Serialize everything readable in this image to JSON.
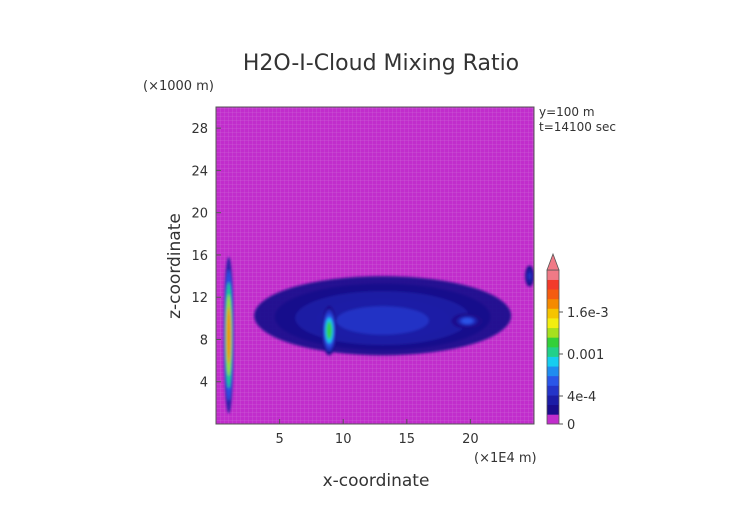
{
  "chart_data": {
    "type": "heatmap",
    "title": "H2O-I-Cloud Mixing Ratio",
    "xlabel": "x-coordinate",
    "ylabel": "z-coordinate",
    "x_unit": "(×1E4 m)",
    "y_unit": "(×1000 m)",
    "annotations": [
      "y=100 m",
      "t=14100 sec"
    ],
    "xlim": [
      0,
      25
    ],
    "ylim": [
      0,
      30
    ],
    "x_ticks": [
      5,
      10,
      15,
      20
    ],
    "y_ticks": [
      4,
      8,
      12,
      16,
      20,
      24,
      28
    ],
    "colorbar": {
      "ticks": [
        {
          "label": "0",
          "value": 0
        },
        {
          "label": "4e-4",
          "value": 0.0004
        },
        {
          "label": "0.001",
          "value": 0.001
        },
        {
          "label": "1.6e-3",
          "value": 0.0016
        }
      ],
      "range": [
        0,
        0.0022
      ],
      "extend": "max",
      "colors": [
        "#c12dcc",
        "#1a0c8c",
        "#1c1ca6",
        "#2434c8",
        "#2a56e8",
        "#1f8cf0",
        "#16cdf0",
        "#22d08a",
        "#33d039",
        "#a6e01e",
        "#f2ee10",
        "#f5c400",
        "#f58a00",
        "#f55c10",
        "#f23a2a",
        "#f07a86"
      ]
    },
    "regions": [
      {
        "label": "ice cloud column near left edge",
        "x_range": [
          0.6,
          1.4
        ],
        "z_range": [
          1.0,
          15.8
        ],
        "max_value": 0.0017
      },
      {
        "label": "main anvil layer",
        "x_range": [
          3.0,
          23.2
        ],
        "z_range": [
          6.5,
          14.0
        ],
        "max_value": 0.0004
      },
      {
        "label": "core near x=9",
        "x_range": [
          8.3,
          9.5
        ],
        "z_range": [
          6.5,
          11.2
        ],
        "max_value": 0.0011
      },
      {
        "label": "core near x=19.5",
        "x_range": [
          18.5,
          21.0
        ],
        "z_range": [
          9.0,
          10.5
        ],
        "max_value": 0.0006
      },
      {
        "label": "patch at right edge",
        "x_range": [
          24.3,
          25.0
        ],
        "z_range": [
          13.0,
          15.0
        ],
        "max_value": 0.0004
      }
    ]
  }
}
